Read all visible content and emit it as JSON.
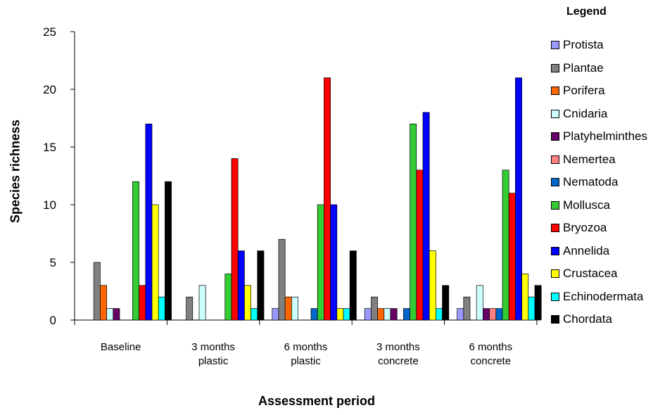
{
  "chart_data": {
    "type": "bar",
    "ylabel": "Species richness",
    "xlabel": "Assessment period",
    "ylim": [
      0,
      25
    ],
    "yticks": [
      0,
      5,
      10,
      15,
      20,
      25
    ],
    "grid": false,
    "legend_title": "Legend",
    "legend_position": "right",
    "categories": [
      [
        "Baseline"
      ],
      [
        "3 months",
        "plastic"
      ],
      [
        "6 months",
        "plastic"
      ],
      [
        "3 months",
        "concrete"
      ],
      [
        "6 months",
        "concrete"
      ]
    ],
    "series": [
      {
        "name": "Protista",
        "color": "#9999ff",
        "values": [
          0,
          0,
          1,
          1,
          1
        ]
      },
      {
        "name": "Plantae",
        "color": "#808080",
        "values": [
          5,
          2,
          7,
          2,
          2
        ]
      },
      {
        "name": "Porifera",
        "color": "#ff6600",
        "values": [
          3,
          0,
          2,
          1,
          0
        ]
      },
      {
        "name": "Cnidaria",
        "color": "#ccffff",
        "values": [
          1,
          3,
          2,
          1,
          3
        ]
      },
      {
        "name": "Platyhelminthes",
        "color": "#660066",
        "values": [
          1,
          0,
          0,
          1,
          1
        ]
      },
      {
        "name": "Nemertea",
        "color": "#ff8080",
        "values": [
          0,
          0,
          0,
          0,
          1
        ]
      },
      {
        "name": "Nematoda",
        "color": "#0066cc",
        "values": [
          0,
          0,
          1,
          1,
          1
        ]
      },
      {
        "name": "Mollusca",
        "color": "#33cc33",
        "values": [
          12,
          4,
          10,
          17,
          13
        ]
      },
      {
        "name": "Bryozoa",
        "color": "#ff0000",
        "values": [
          3,
          14,
          21,
          13,
          11
        ]
      },
      {
        "name": "Annelida",
        "color": "#0000ff",
        "values": [
          17,
          6,
          10,
          18,
          21
        ]
      },
      {
        "name": "Crustacea",
        "color": "#ffff00",
        "values": [
          10,
          3,
          1,
          6,
          4
        ]
      },
      {
        "name": "Echinodermata",
        "color": "#00ffff",
        "values": [
          2,
          1,
          1,
          1,
          2
        ]
      },
      {
        "name": "Chordata",
        "color": "#000000",
        "values": [
          12,
          6,
          6,
          3,
          3
        ]
      }
    ]
  }
}
